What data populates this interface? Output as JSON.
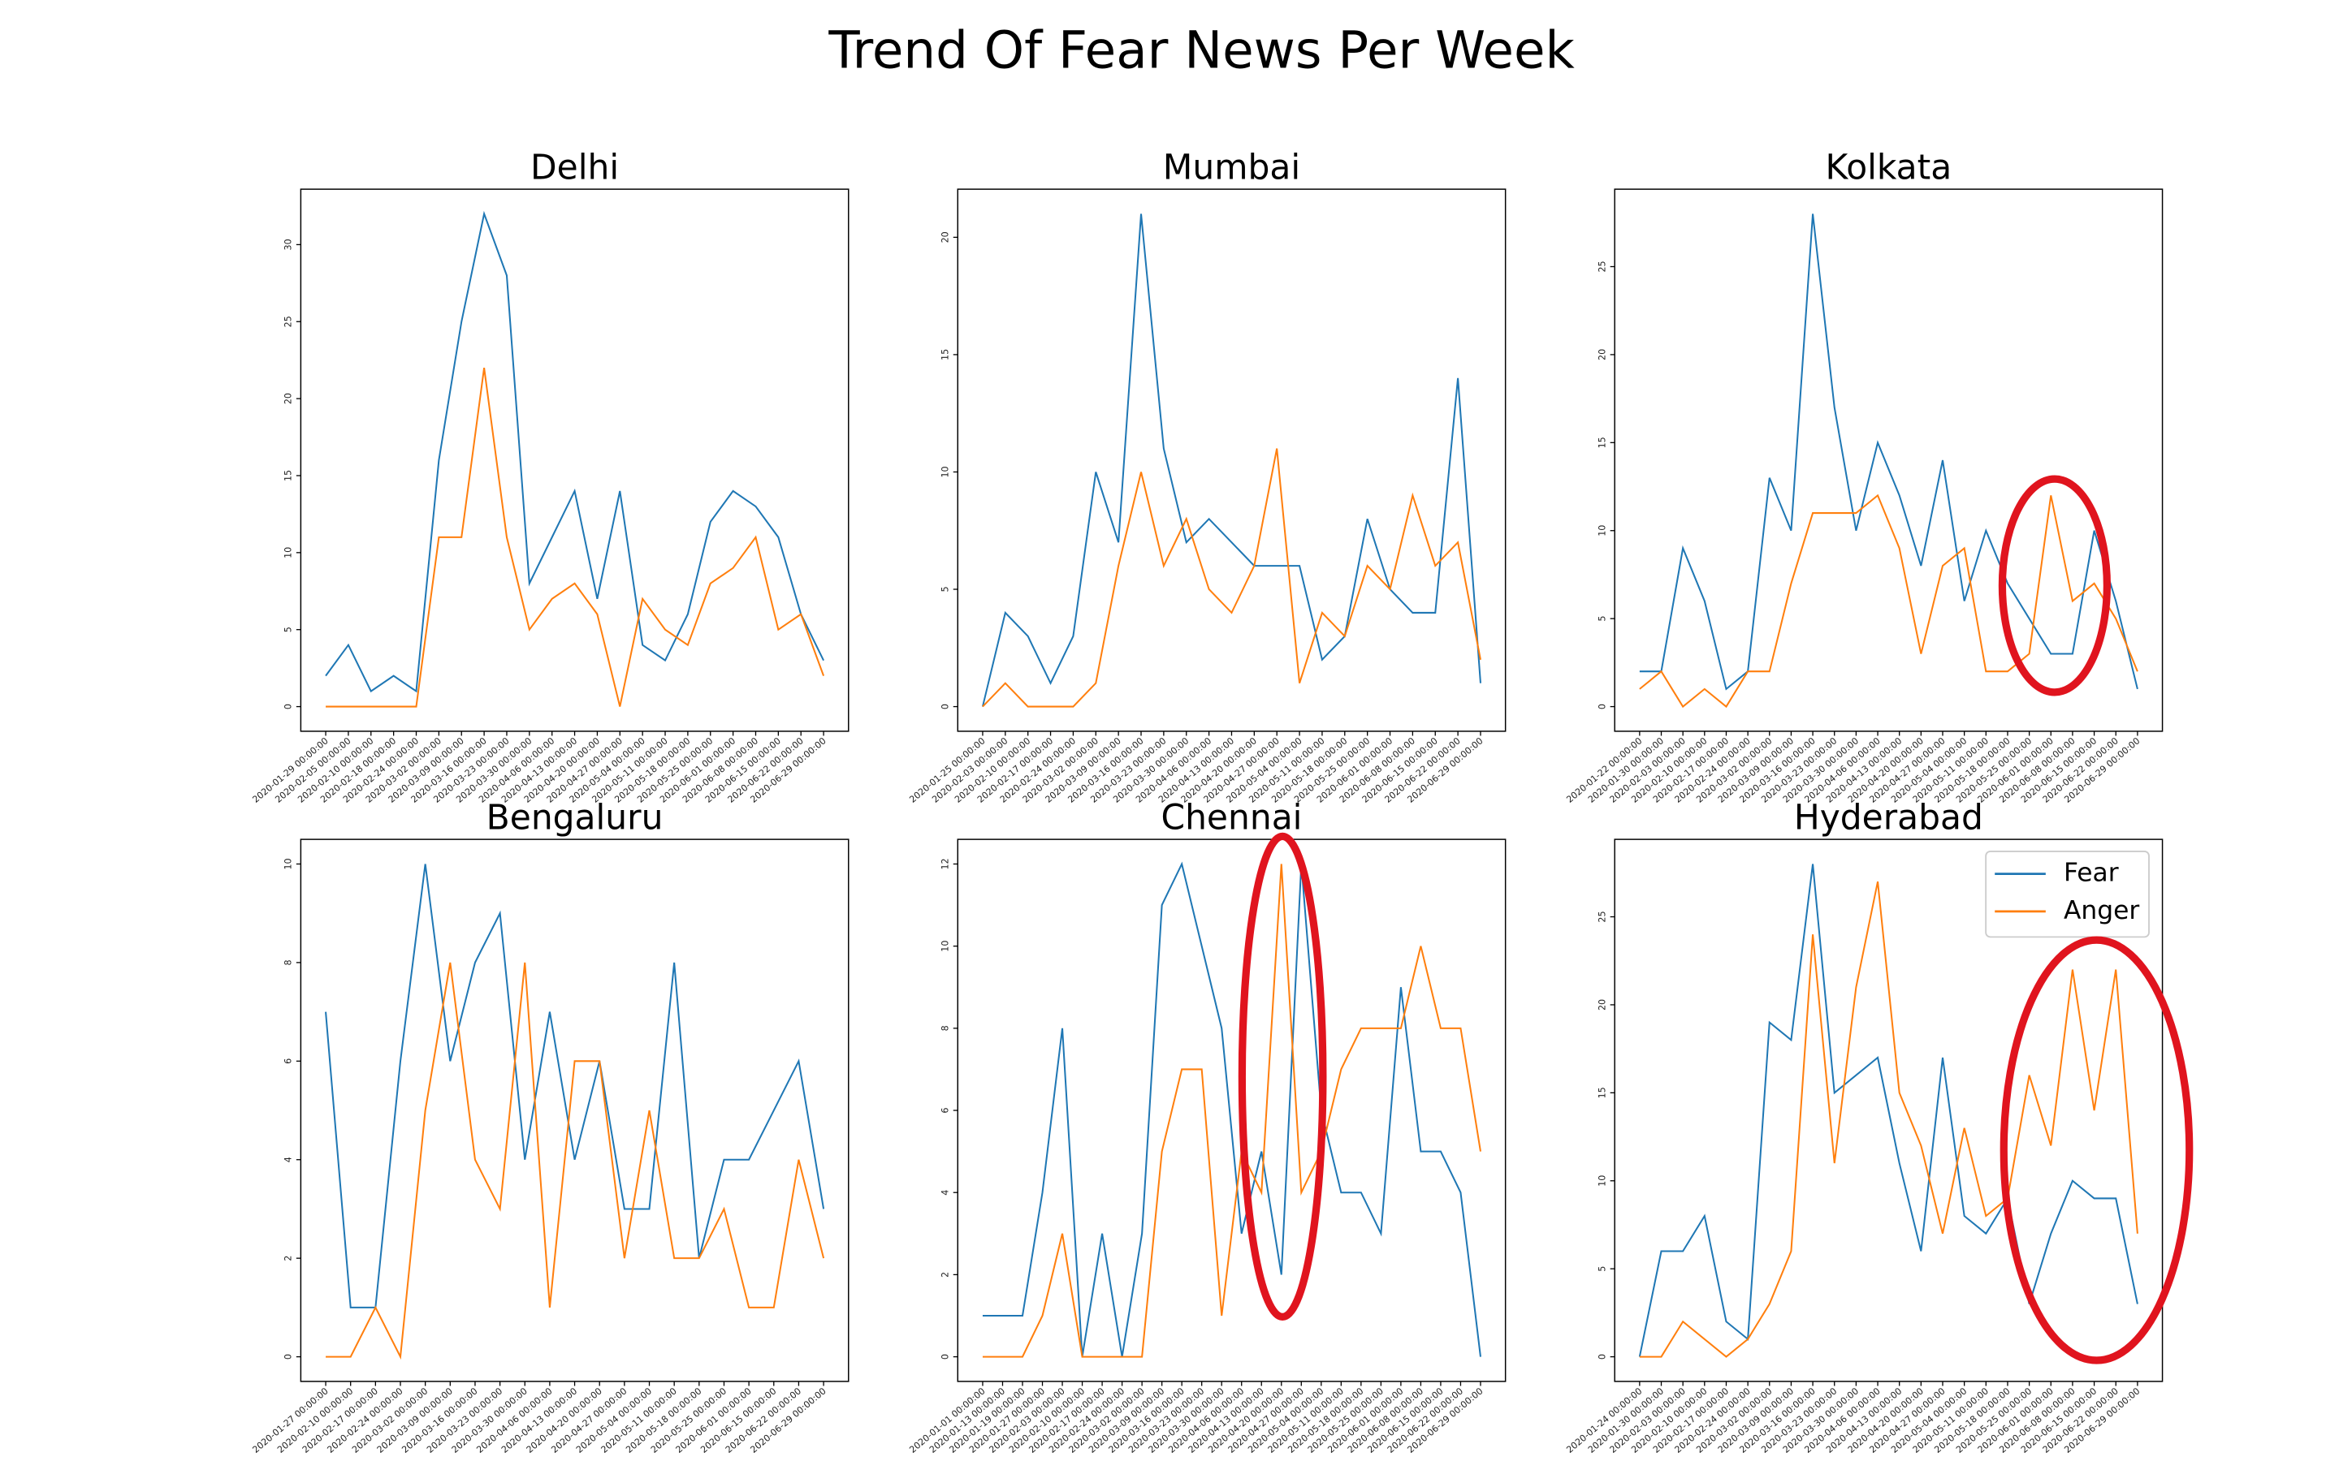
{
  "title": "Trend Of Fear News Per Week",
  "chart_data": [
    {
      "type": "line",
      "title": "Delhi",
      "categories": [
        "2020-01-29 00:00:00",
        "2020-02-05 00:00:00",
        "2020-02-10 00:00:00",
        "2020-02-18 00:00:00",
        "2020-02-24 00:00:00",
        "2020-03-02 00:00:00",
        "2020-03-09 00:00:00",
        "2020-03-16 00:00:00",
        "2020-03-23 00:00:00",
        "2020-03-30 00:00:00",
        "2020-04-06 00:00:00",
        "2020-04-13 00:00:00",
        "2020-04-20 00:00:00",
        "2020-04-27 00:00:00",
        "2020-05-04 00:00:00",
        "2020-05-11 00:00:00",
        "2020-05-18 00:00:00",
        "2020-05-25 00:00:00",
        "2020-06-01 00:00:00",
        "2020-06-08 00:00:00",
        "2020-06-15 00:00:00",
        "2020-06-22 00:00:00",
        "2020-06-29 00:00:00"
      ],
      "series": [
        {
          "name": "Fear",
          "color": "#1f77b4",
          "values": [
            2,
            4,
            1,
            2,
            1,
            16,
            25,
            32,
            28,
            8,
            11,
            14,
            7,
            14,
            4,
            3,
            6,
            12,
            14,
            13,
            11,
            6,
            3
          ]
        },
        {
          "name": "Anger",
          "color": "#ff7f0e",
          "values": [
            0,
            0,
            0,
            0,
            0,
            11,
            11,
            22,
            11,
            5,
            7,
            8,
            6,
            0,
            7,
            5,
            4,
            8,
            9,
            11,
            5,
            6,
            2
          ]
        }
      ],
      "ylim": [
        -1.6,
        33.6
      ],
      "yticks": [
        0,
        5,
        10,
        15,
        20,
        25,
        30
      ]
    },
    {
      "type": "line",
      "title": "Mumbai",
      "categories": [
        "2020-01-25 00:00:00",
        "2020-02-03 00:00:00",
        "2020-02-10 00:00:00",
        "2020-02-17 00:00:00",
        "2020-02-24 00:00:00",
        "2020-03-02 00:00:00",
        "2020-03-09 00:00:00",
        "2020-03-16 00:00:00",
        "2020-03-23 00:00:00",
        "2020-03-30 00:00:00",
        "2020-04-06 00:00:00",
        "2020-04-13 00:00:00",
        "2020-04-20 00:00:00",
        "2020-04-27 00:00:00",
        "2020-05-04 00:00:00",
        "2020-05-11 00:00:00",
        "2020-05-18 00:00:00",
        "2020-05-25 00:00:00",
        "2020-06-01 00:00:00",
        "2020-06-08 00:00:00",
        "2020-06-15 00:00:00",
        "2020-06-22 00:00:00",
        "2020-06-29 00:00:00"
      ],
      "series": [
        {
          "name": "Fear",
          "color": "#1f77b4",
          "values": [
            0,
            4,
            3,
            1,
            3,
            10,
            7,
            21,
            11,
            7,
            8,
            7,
            6,
            6,
            6,
            2,
            3,
            8,
            5,
            4,
            4,
            14,
            1
          ]
        },
        {
          "name": "Anger",
          "color": "#ff7f0e",
          "values": [
            0,
            1,
            0,
            0,
            0,
            1,
            6,
            10,
            6,
            8,
            5,
            4,
            6,
            11,
            1,
            4,
            3,
            6,
            5,
            9,
            6,
            7,
            2
          ]
        }
      ],
      "ylim": [
        -1.05,
        22.05
      ],
      "yticks": [
        0,
        5,
        10,
        15,
        20
      ]
    },
    {
      "type": "line",
      "title": "Kolkata",
      "categories": [
        "2020-01-22 00:00:00",
        "2020-01-30 00:00:00",
        "2020-02-03 00:00:00",
        "2020-02-10 00:00:00",
        "2020-02-17 00:00:00",
        "2020-02-24 00:00:00",
        "2020-03-02 00:00:00",
        "2020-03-09 00:00:00",
        "2020-03-16 00:00:00",
        "2020-03-23 00:00:00",
        "2020-03-30 00:00:00",
        "2020-04-06 00:00:00",
        "2020-04-13 00:00:00",
        "2020-04-20 00:00:00",
        "2020-04-27 00:00:00",
        "2020-05-04 00:00:00",
        "2020-05-11 00:00:00",
        "2020-05-18 00:00:00",
        "2020-05-25 00:00:00",
        "2020-06-01 00:00:00",
        "2020-06-08 00:00:00",
        "2020-06-15 00:00:00",
        "2020-06-22 00:00:00",
        "2020-06-29 00:00:00"
      ],
      "series": [
        {
          "name": "Fear",
          "color": "#1f77b4",
          "values": [
            2,
            2,
            9,
            6,
            1,
            2,
            13,
            10,
            28,
            17,
            10,
            15,
            12,
            8,
            14,
            6,
            10,
            7,
            5,
            3,
            3,
            10,
            6,
            1
          ]
        },
        {
          "name": "Anger",
          "color": "#ff7f0e",
          "values": [
            1,
            2,
            0,
            1,
            0,
            2,
            2,
            7,
            11,
            11,
            11,
            12,
            9,
            3,
            8,
            9,
            2,
            2,
            3,
            12,
            6,
            7,
            5,
            2
          ]
        }
      ],
      "ylim": [
        -1.4,
        29.4
      ],
      "yticks": [
        0,
        5,
        10,
        15,
        20,
        25
      ]
    },
    {
      "type": "line",
      "title": "Bengaluru",
      "categories": [
        "2020-01-27 00:00:00",
        "2020-02-10 00:00:00",
        "2020-02-17 00:00:00",
        "2020-02-24 00:00:00",
        "2020-03-02 00:00:00",
        "2020-03-09 00:00:00",
        "2020-03-16 00:00:00",
        "2020-03-23 00:00:00",
        "2020-03-30 00:00:00",
        "2020-04-06 00:00:00",
        "2020-04-13 00:00:00",
        "2020-04-20 00:00:00",
        "2020-04-27 00:00:00",
        "2020-05-04 00:00:00",
        "2020-05-11 00:00:00",
        "2020-05-18 00:00:00",
        "2020-05-25 00:00:00",
        "2020-06-01 00:00:00",
        "2020-06-15 00:00:00",
        "2020-06-22 00:00:00",
        "2020-06-29 00:00:00"
      ],
      "series": [
        {
          "name": "Fear",
          "color": "#1f77b4",
          "values": [
            7,
            1,
            1,
            6,
            10,
            6,
            8,
            9,
            4,
            7,
            4,
            6,
            3,
            3,
            8,
            2,
            4,
            4,
            5,
            6,
            3
          ]
        },
        {
          "name": "Anger",
          "color": "#ff7f0e",
          "values": [
            0,
            0,
            1,
            0,
            5,
            8,
            4,
            3,
            8,
            1,
            6,
            6,
            2,
            5,
            2,
            2,
            3,
            1,
            1,
            4,
            2
          ]
        }
      ],
      "ylim": [
        -0.5,
        10.5
      ],
      "yticks": [
        0,
        2,
        4,
        6,
        8,
        10
      ]
    },
    {
      "type": "line",
      "title": "Chennai",
      "categories": [
        "2020-01-01 00:00:00",
        "2020-01-13 00:00:00",
        "2020-01-19 00:00:00",
        "2020-01-27 00:00:00",
        "2020-02-03 00:00:00",
        "2020-02-10 00:00:00",
        "2020-02-17 00:00:00",
        "2020-02-24 00:00:00",
        "2020-03-02 00:00:00",
        "2020-03-09 00:00:00",
        "2020-03-16 00:00:00",
        "2020-03-23 00:00:00",
        "2020-03-30 00:00:00",
        "2020-04-06 00:00:00",
        "2020-04-13 00:00:00",
        "2020-04-20 00:00:00",
        "2020-04-27 00:00:00",
        "2020-05-04 00:00:00",
        "2020-05-11 00:00:00",
        "2020-05-18 00:00:00",
        "2020-05-25 00:00:00",
        "2020-06-01 00:00:00",
        "2020-06-08 00:00:00",
        "2020-06-15 00:00:00",
        "2020-06-22 00:00:00",
        "2020-06-29 00:00:00"
      ],
      "series": [
        {
          "name": "Fear",
          "color": "#1f77b4",
          "values": [
            1,
            1,
            1,
            4,
            8,
            0,
            3,
            0,
            3,
            11,
            12,
            10,
            8,
            3,
            5,
            2,
            12,
            6,
            4,
            4,
            3,
            9,
            5,
            5,
            4,
            0
          ]
        },
        {
          "name": "Anger",
          "color": "#ff7f0e",
          "values": [
            0,
            0,
            0,
            1,
            3,
            0,
            0,
            0,
            0,
            5,
            7,
            7,
            1,
            5,
            4,
            12,
            4,
            5,
            7,
            8,
            8,
            8,
            10,
            8,
            8,
            5
          ]
        }
      ],
      "ylim": [
        -0.6,
        12.6
      ],
      "yticks": [
        0,
        2,
        4,
        6,
        8,
        10,
        12
      ]
    },
    {
      "type": "line",
      "title": "Hyderabad",
      "categories": [
        "2020-01-24 00:00:00",
        "2020-01-30 00:00:00",
        "2020-02-03 00:00:00",
        "2020-02-10 00:00:00",
        "2020-02-17 00:00:00",
        "2020-02-24 00:00:00",
        "2020-03-02 00:00:00",
        "2020-03-09 00:00:00",
        "2020-03-16 00:00:00",
        "2020-03-23 00:00:00",
        "2020-03-30 00:00:00",
        "2020-04-06 00:00:00",
        "2020-04-13 00:00:00",
        "2020-04-20 00:00:00",
        "2020-04-27 00:00:00",
        "2020-05-04 00:00:00",
        "2020-05-11 00:00:00",
        "2020-05-18 00:00:00",
        "2020-05-25 00:00:00",
        "2020-06-01 00:00:00",
        "2020-06-08 00:00:00",
        "2020-06-15 00:00:00",
        "2020-06-22 00:00:00",
        "2020-06-29 00:00:00"
      ],
      "series": [
        {
          "name": "Fear",
          "color": "#1f77b4",
          "values": [
            0,
            6,
            6,
            8,
            2,
            1,
            19,
            18,
            28,
            15,
            16,
            17,
            11,
            6,
            17,
            8,
            7,
            9,
            3,
            7,
            10,
            9,
            9,
            3
          ]
        },
        {
          "name": "Anger",
          "color": "#ff7f0e",
          "values": [
            0,
            0,
            2,
            1,
            0,
            1,
            3,
            6,
            24,
            11,
            21,
            27,
            15,
            12,
            7,
            13,
            8,
            9,
            16,
            12,
            22,
            14,
            22,
            7
          ]
        }
      ],
      "ylim": [
        -1.4,
        29.4
      ],
      "yticks": [
        0,
        5,
        10,
        15,
        20,
        25
      ],
      "legend": "upper right"
    }
  ]
}
